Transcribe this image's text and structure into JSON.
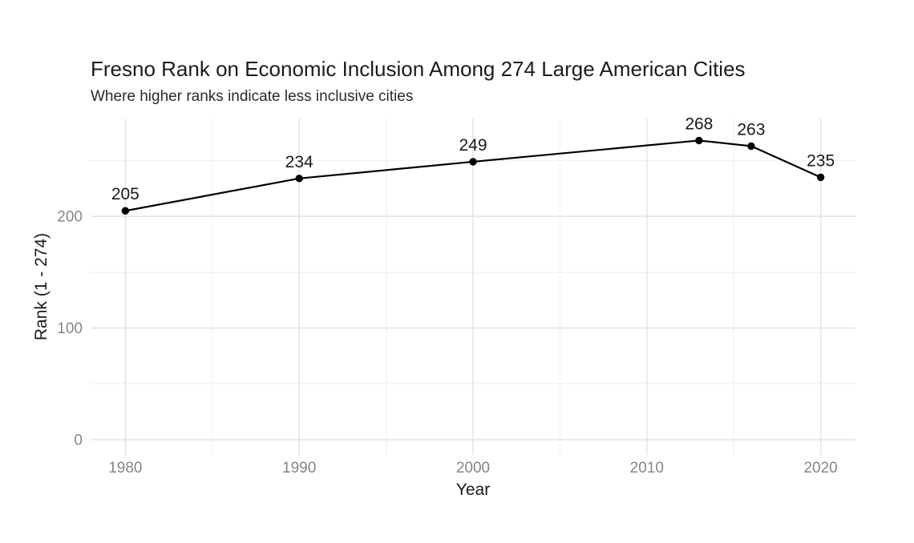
{
  "chart_data": {
    "type": "line",
    "title": "Fresno Rank on Economic Inclusion Among 274 Large American Cities",
    "subtitle": "Where higher ranks indicate less inclusive cities",
    "xlabel": "Year",
    "ylabel": "Rank (1 - 274)",
    "x": [
      1980,
      1990,
      2000,
      2013,
      2016,
      2020
    ],
    "values": [
      205,
      234,
      249,
      268,
      263,
      235
    ],
    "point_labels": [
      "205",
      "234",
      "249",
      "268",
      "263",
      "235"
    ],
    "x_ticks": [
      1980,
      1990,
      2000,
      2010,
      2020
    ],
    "x_tick_labels": [
      "1980",
      "1990",
      "2000",
      "2010",
      "2020"
    ],
    "x_minor_ticks": [
      1985,
      1995,
      2005,
      2015
    ],
    "y_ticks": [
      0,
      100,
      200
    ],
    "y_tick_labels": [
      "0",
      "100",
      "200"
    ],
    "y_minor_ticks": [
      50,
      150,
      250
    ],
    "xlim": [
      1978,
      2022
    ],
    "ylim": [
      -13.7,
      287.7
    ],
    "grid": true,
    "legend": "none",
    "colors": {
      "line": "#000000",
      "point": "#000000",
      "data_label": "#1a1a1a",
      "axis_title": "#1a1a1a",
      "tick_label": "#858585",
      "grid_major": "#e5e5e5",
      "grid_minor": "#f2f2f2",
      "background": "#ffffff"
    }
  }
}
